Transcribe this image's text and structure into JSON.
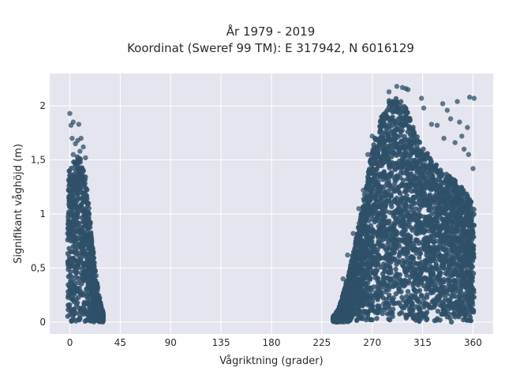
{
  "chart_data": {
    "type": "scatter",
    "title_line1": "År 1979 - 2019",
    "title_line2": "Koordinat (Sweref 99 TM): E 317942, N 6016129",
    "xlabel": "Vågriktning (grader)",
    "ylabel": "Signifikant våghöjd (m)",
    "xlim": [
      -18,
      378
    ],
    "ylim": [
      -0.11,
      2.3
    ],
    "x_ticks": [
      0,
      45,
      90,
      135,
      180,
      225,
      270,
      315,
      360
    ],
    "x_tick_labels": [
      "0",
      "45",
      "90",
      "135",
      "180",
      "225",
      "270",
      "315",
      "360"
    ],
    "y_ticks": [
      0,
      0.5,
      1,
      1.5,
      2
    ],
    "y_tick_labels": [
      "0",
      "0,5",
      "1",
      "1,5",
      "2"
    ],
    "grid": true,
    "colors": {
      "plot_bg": "#e5e5ef",
      "grid": "#ffffff",
      "marker": "#2e5068"
    },
    "clusters": [
      {
        "name": "north",
        "x_range": [
          -2,
          30
        ],
        "envelope": [
          [
            -2,
            1.38
          ],
          [
            0,
            1.42
          ],
          [
            4,
            1.5
          ],
          [
            8,
            1.55
          ],
          [
            11,
            1.5
          ],
          [
            14,
            1.35
          ],
          [
            16,
            1.2
          ],
          [
            18,
            0.95
          ],
          [
            20,
            0.75
          ],
          [
            22,
            0.55
          ],
          [
            24,
            0.38
          ],
          [
            26,
            0.25
          ],
          [
            28,
            0.15
          ],
          [
            30,
            0.08
          ]
        ],
        "outliers": [
          [
            0,
            1.93
          ],
          [
            1,
            1.82
          ],
          [
            3,
            1.85
          ],
          [
            8,
            1.83
          ],
          [
            2,
            1.7
          ],
          [
            5,
            1.65
          ],
          [
            7,
            1.68
          ],
          [
            10,
            1.7
          ],
          [
            12,
            1.62
          ],
          [
            9,
            1.58
          ],
          [
            14,
            1.52
          ],
          [
            3,
            1.55
          ]
        ]
      },
      {
        "name": "westerly",
        "x_range": [
          235,
          361
        ],
        "envelope": [
          [
            235,
            0.05
          ],
          [
            240,
            0.12
          ],
          [
            245,
            0.3
          ],
          [
            250,
            0.5
          ],
          [
            255,
            0.75
          ],
          [
            260,
            1.0
          ],
          [
            265,
            1.3
          ],
          [
            270,
            1.6
          ],
          [
            275,
            1.8
          ],
          [
            280,
            1.95
          ],
          [
            285,
            2.05
          ],
          [
            290,
            2.08
          ],
          [
            295,
            2.05
          ],
          [
            300,
            1.98
          ],
          [
            305,
            1.85
          ],
          [
            310,
            1.72
          ],
          [
            315,
            1.62
          ],
          [
            320,
            1.55
          ],
          [
            325,
            1.48
          ],
          [
            330,
            1.42
          ],
          [
            335,
            1.38
          ],
          [
            340,
            1.35
          ],
          [
            345,
            1.3
          ],
          [
            350,
            1.25
          ],
          [
            355,
            1.18
          ],
          [
            358,
            1.12
          ],
          [
            361,
            1.05
          ]
        ],
        "outliers": [
          [
            292,
            2.18
          ],
          [
            297,
            2.17
          ],
          [
            300,
            2.16
          ],
          [
            302,
            2.15
          ],
          [
            285,
            2.13
          ],
          [
            314,
            2.07
          ],
          [
            316,
            1.98
          ],
          [
            333,
            2.02
          ],
          [
            337,
            1.96
          ],
          [
            346,
            2.04
          ],
          [
            357,
            2.08
          ],
          [
            361,
            2.07
          ],
          [
            340,
            1.88
          ],
          [
            348,
            1.85
          ],
          [
            355,
            1.8
          ],
          [
            323,
            1.83
          ],
          [
            328,
            1.82
          ],
          [
            352,
            1.6
          ],
          [
            356,
            1.55
          ],
          [
            360,
            1.42
          ],
          [
            270,
            1.72
          ],
          [
            266,
            1.55
          ],
          [
            262,
            1.22
          ],
          [
            258,
            1.05
          ],
          [
            253,
            0.82
          ],
          [
            248,
            0.62
          ],
          [
            244,
            0.4
          ],
          [
            344,
            1.66
          ],
          [
            334,
            1.7
          ],
          [
            350,
            1.72
          ]
        ]
      }
    ]
  }
}
